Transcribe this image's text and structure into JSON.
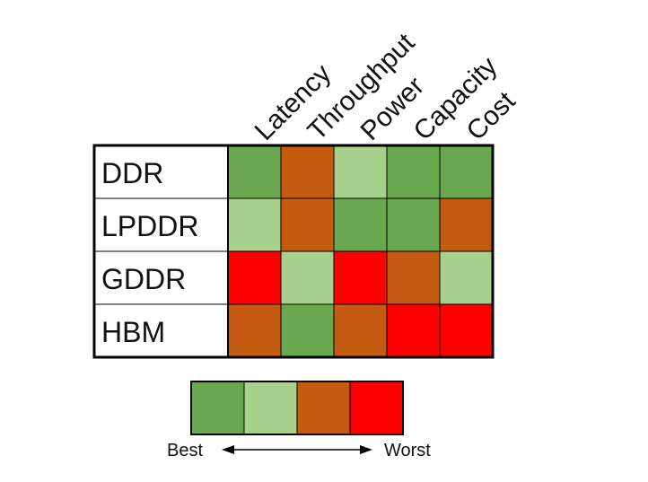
{
  "chart_data": {
    "type": "heatmap",
    "title": "",
    "columns": [
      "Latency",
      "Throughput",
      "Power",
      "Capacity",
      "Cost"
    ],
    "rows": [
      "DDR",
      "LPDDR",
      "GDDR",
      "HBM"
    ],
    "scale": {
      "levels": [
        1,
        2,
        3,
        4
      ],
      "colors": [
        "#6aa84f",
        "#a8d08d",
        "#c55a11",
        "#ff0000"
      ],
      "best_label": "Best",
      "worst_label": "Worst"
    },
    "values": [
      [
        1,
        3,
        2,
        1,
        1
      ],
      [
        2,
        3,
        1,
        1,
        3
      ],
      [
        4,
        2,
        4,
        3,
        2
      ],
      [
        3,
        1,
        3,
        4,
        4
      ]
    ],
    "grid": true,
    "legend_position": "bottom"
  }
}
